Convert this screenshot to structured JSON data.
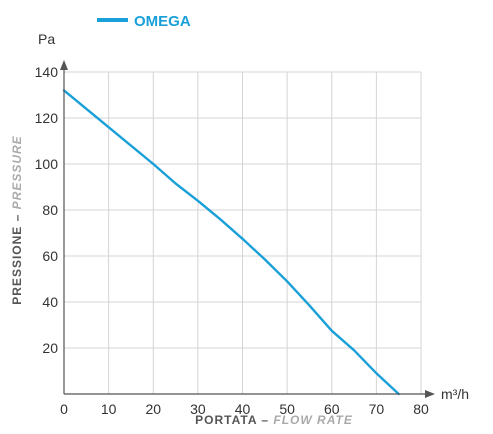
{
  "chart_data": {
    "type": "line",
    "legend": {
      "position": "top-left"
    },
    "xlabel": {
      "main": "PORTATA",
      "separator": " – ",
      "sub": "FLOW RATE"
    },
    "ylabel": {
      "main": "PRESSIONE",
      "separator": " – ",
      "sub": "PRESSURE"
    },
    "x_unit": "m³/h",
    "y_unit": "Pa",
    "xlim": [
      0,
      80
    ],
    "ylim": [
      0,
      140
    ],
    "x_ticks": [
      0,
      10,
      20,
      30,
      40,
      50,
      60,
      70,
      80
    ],
    "y_ticks": [
      20,
      40,
      60,
      80,
      100,
      120,
      140
    ],
    "x_tick_labels": [
      "0",
      "10",
      "20",
      "30",
      "40",
      "50",
      "60",
      "70",
      "80"
    ],
    "y_tick_labels": [
      "20",
      "40",
      "60",
      "80",
      "100",
      "120",
      "140"
    ],
    "grid": true,
    "series": [
      {
        "name": "OMEGA",
        "color": "#1aa0d8",
        "points": [
          [
            0,
            132
          ],
          [
            5,
            124
          ],
          [
            10,
            116
          ],
          [
            15,
            108
          ],
          [
            20,
            100
          ],
          [
            25,
            91.5
          ],
          [
            30,
            84
          ],
          [
            35,
            76
          ],
          [
            40,
            67.5
          ],
          [
            45,
            58.5
          ],
          [
            50,
            49
          ],
          [
            55,
            38.5
          ],
          [
            60,
            27.5
          ],
          [
            65,
            19
          ],
          [
            70,
            9
          ],
          [
            75,
            0
          ]
        ]
      }
    ]
  },
  "colors": {
    "grid": "#d4d4d4",
    "axis": "#555555",
    "series": "#1aa0d8"
  }
}
